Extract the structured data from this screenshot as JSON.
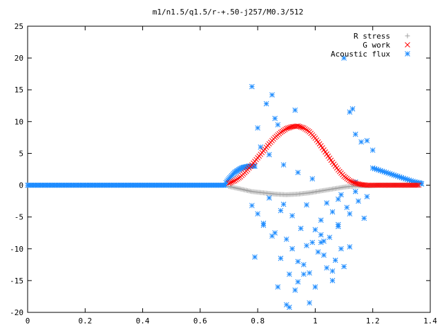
{
  "chart_data": {
    "type": "scatter",
    "title": "m1/n1.5/q1.5/r-+.50-j257/M0.3/512",
    "xlabel": "",
    "ylabel": "",
    "xlim": [
      0,
      1.4
    ],
    "ylim": [
      -20,
      25
    ],
    "grid": false,
    "legend_placement": "top-right",
    "x_ticks": [
      "0",
      "0.2",
      "0.4",
      "0.6",
      "0.8",
      "1",
      "1.2",
      "1.4"
    ],
    "y_ticks": [
      "-20",
      "-15",
      "-10",
      "-5",
      "0",
      "5",
      "10",
      "15",
      "20",
      "25"
    ],
    "series": [
      {
        "name": "R stress",
        "color": "#a0a0a0",
        "marker": "plus",
        "x": [
          0.7,
          0.72,
          0.74,
          0.76,
          0.78,
          0.8,
          0.82,
          0.84,
          0.86,
          0.88,
          0.9,
          0.92,
          0.94,
          0.96,
          0.98,
          1.0,
          1.02,
          1.04,
          1.06,
          1.08,
          1.1,
          1.12,
          1.14,
          1.16,
          1.18,
          1.2,
          1.22,
          1.24,
          1.26,
          1.28,
          1.3,
          1.32,
          1.34,
          1.36
        ],
        "y": [
          -0.2,
          -0.4,
          -0.6,
          -0.8,
          -1.0,
          -1.1,
          -1.2,
          -1.3,
          -1.4,
          -1.45,
          -1.5,
          -1.45,
          -1.4,
          -1.3,
          -1.2,
          -1.05,
          -0.9,
          -0.75,
          -0.6,
          -0.45,
          -0.3,
          -0.2,
          -0.15,
          -0.1,
          -0.1,
          -0.05,
          0.0,
          0.0,
          0.0,
          0.0,
          0.0,
          0.0,
          0.0,
          0.0
        ]
      },
      {
        "name": "G work",
        "color": "#ff0000",
        "marker": "cross",
        "x": [
          0.7,
          0.72,
          0.74,
          0.76,
          0.78,
          0.8,
          0.82,
          0.84,
          0.86,
          0.88,
          0.9,
          0.92,
          0.94,
          0.96,
          0.98,
          1.0,
          1.02,
          1.04,
          1.06,
          1.08,
          1.1,
          1.12,
          1.14,
          1.16,
          1.18,
          1.2,
          1.22,
          1.24,
          1.26,
          1.28,
          1.3,
          1.32,
          1.34,
          1.36
        ],
        "y": [
          0.3,
          0.7,
          1.3,
          2.2,
          3.2,
          4.3,
          5.4,
          6.5,
          7.5,
          8.3,
          8.9,
          9.2,
          9.3,
          9.0,
          8.4,
          7.4,
          6.2,
          4.9,
          3.6,
          2.4,
          1.4,
          0.7,
          0.3,
          0.1,
          0.0,
          0.0,
          0.0,
          0.0,
          0.0,
          0.0,
          0.0,
          0.0,
          0.0,
          0.0
        ]
      },
      {
        "name": "Acoustic flux",
        "color": "#1e8cff",
        "marker": "star",
        "x_zero_range": [
          0.0,
          0.69
        ],
        "curve_low": {
          "x": [
            0.69,
            0.7,
            0.71,
            0.72,
            0.73,
            0.74,
            0.75,
            0.76,
            0.77,
            0.78,
            0.79
          ],
          "y": [
            0.4,
            1.0,
            1.5,
            2.0,
            2.3,
            2.6,
            2.8,
            2.9,
            3.0,
            3.0,
            3.0
          ]
        },
        "curve_high": {
          "x": [
            1.2,
            1.22,
            1.24,
            1.26,
            1.28,
            1.3,
            1.32,
            1.34,
            1.36,
            1.37
          ],
          "y": [
            2.7,
            2.4,
            2.1,
            1.8,
            1.5,
            1.2,
            0.9,
            0.6,
            0.4,
            0.2
          ]
        },
        "scatter": {
          "x": [
            0.78,
            0.8,
            0.81,
            0.79,
            0.83,
            0.85,
            0.87,
            0.89,
            0.78,
            0.8,
            0.82,
            0.84,
            0.86,
            0.88,
            0.9,
            0.92,
            0.94,
            0.96,
            0.98,
            1.0,
            1.02,
            1.04,
            1.06,
            1.08,
            1.1,
            1.12,
            1.14,
            1.16,
            1.18,
            1.2,
            0.82,
            0.85,
            0.88,
            0.91,
            0.94,
            0.97,
            1.0,
            1.03,
            1.06,
            1.09,
            1.12,
            1.15,
            1.18,
            0.9,
            0.93,
            0.96,
            0.99,
            1.02,
            1.05,
            1.08,
            1.11,
            1.14,
            0.87,
            0.92,
            0.97,
            1.02,
            1.07,
            1.12,
            0.84,
            0.89,
            0.94,
            0.99,
            1.04,
            1.09,
            1.14,
            0.91,
            0.95,
            1.01,
            1.06,
            1.1,
            0.86,
            0.93,
            0.98,
            1.03,
            1.08,
            1.13,
            1.17
          ],
          "y": [
            15.5,
            9.0,
            6.0,
            -11.3,
            12.8,
            14.2,
            9.5,
            -3.0,
            -3.2,
            -4.5,
            -6.0,
            -2.0,
            -7.5,
            -4.0,
            -8.5,
            -10.0,
            -12.0,
            -14.0,
            -18.5,
            -16.0,
            -9.0,
            -13.0,
            -15.0,
            -6.5,
            20.0,
            11.5,
            8.0,
            6.8,
            7.0,
            5.5,
            -6.3,
            -8.0,
            -11.5,
            -14.0,
            -15.2,
            -9.5,
            -7.0,
            -11.0,
            -13.5,
            -10.0,
            -4.5,
            -2.5,
            -1.8,
            -18.8,
            -16.5,
            -12.5,
            -9.0,
            -5.5,
            -8.2,
            -6.2,
            -3.5,
            -1.0,
            -16.0,
            -4.8,
            -3.1,
            -7.8,
            -11.8,
            -9.7,
            4.8,
            3.2,
            2.0,
            1.0,
            -2.8,
            -1.5,
            0.5,
            -19.2,
            -6.8,
            -10.5,
            -4.2,
            -12.8,
            10.5,
            11.8,
            -13.8,
            -8.8,
            -2.2,
            12.0,
            -5.2
          ]
        }
      }
    ]
  }
}
